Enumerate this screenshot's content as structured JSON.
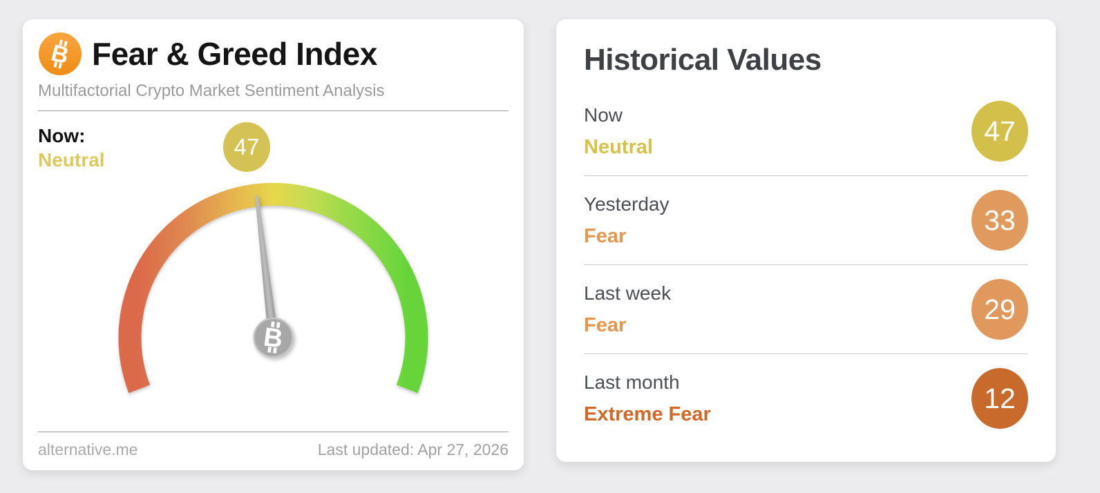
{
  "gauge_card": {
    "title": "Fear & Greed Index",
    "subtitle": "Multifactorial Crypto Market Sentiment Analysis",
    "now_label": "Now:",
    "now_sentiment": "Neutral",
    "now_sentiment_color": "#dcc95e",
    "badge_value": "47",
    "badge_color": "#d5c255",
    "footer_left": "alternative.me",
    "footer_right": "Last updated: Apr 27, 2026",
    "bitcoin_icon_color": "#f7941d"
  },
  "gauge": {
    "value": 47,
    "min": 0,
    "max": 100,
    "sweep_deg": 222,
    "needle_color": "#9e9e9e",
    "hub_color": "#a7a7a7",
    "arc_colors": [
      "#db6a4a",
      "#e08a50",
      "#e7bb4e",
      "#e7d74b",
      "#c8dc53",
      "#93da48",
      "#67d53a"
    ]
  },
  "history_card": {
    "title": "Historical Values",
    "rows": [
      {
        "label": "Now",
        "sentiment": "Neutral",
        "sentiment_color": "#d5c24b",
        "value": "47",
        "badge_color": "#d2c04b"
      },
      {
        "label": "Yesterday",
        "sentiment": "Fear",
        "sentiment_color": "#e6964f",
        "value": "33",
        "badge_color": "#e09a5e"
      },
      {
        "label": "Last week",
        "sentiment": "Fear",
        "sentiment_color": "#e6964f",
        "value": "29",
        "badge_color": "#e0985c"
      },
      {
        "label": "Last month",
        "sentiment": "Extreme Fear",
        "sentiment_color": "#d0682a",
        "value": "12",
        "badge_color": "#c86a2c"
      }
    ]
  },
  "chart_data": {
    "type": "gauge",
    "title": "Fear & Greed Index",
    "value": 47,
    "range": [
      0,
      100
    ],
    "current_classification": "Neutral",
    "history": [
      {
        "period": "Now",
        "classification": "Neutral",
        "value": 47
      },
      {
        "period": "Yesterday",
        "classification": "Fear",
        "value": 33
      },
      {
        "period": "Last week",
        "classification": "Fear",
        "value": 29
      },
      {
        "period": "Last month",
        "classification": "Extreme Fear",
        "value": 12
      }
    ]
  }
}
